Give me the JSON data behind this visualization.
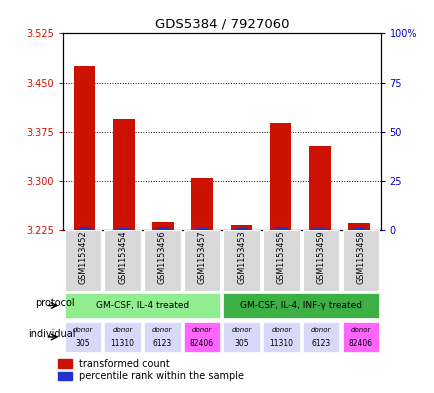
{
  "title": "GDS5384 / 7927060",
  "samples": [
    "GSM1153452",
    "GSM1153454",
    "GSM1153456",
    "GSM1153457",
    "GSM1153453",
    "GSM1153455",
    "GSM1153459",
    "GSM1153458"
  ],
  "red_values": [
    3.476,
    3.395,
    3.237,
    3.305,
    3.233,
    3.388,
    3.353,
    3.236
  ],
  "blue_values": [
    3.229,
    3.228,
    3.229,
    3.228,
    3.228,
    3.229,
    3.228,
    3.228
  ],
  "baseline": 3.225,
  "ylim_left": [
    3.225,
    3.525
  ],
  "yticks_left": [
    3.225,
    3.3,
    3.375,
    3.45,
    3.525
  ],
  "yticks_right": [
    0,
    25,
    50,
    75,
    100
  ],
  "ylim_right": [
    0,
    100
  ],
  "protocol_labels": [
    "GM-CSF, IL-4 treated",
    "GM-CSF, IL-4, INF-γ treated"
  ],
  "protocol_colors": [
    "#90EE90",
    "#3CB043"
  ],
  "individual_colors": [
    "#D8D8F8",
    "#D8D8F8",
    "#D8D8F8",
    "#FF66FF",
    "#D8D8F8",
    "#D8D8F8",
    "#D8D8F8",
    "#FF66FF"
  ],
  "individual_labels": [
    "305",
    "11310",
    "6123",
    "82406",
    "305",
    "11310",
    "6123",
    "82406"
  ],
  "red_color": "#CC1100",
  "blue_color": "#2233CC",
  "background_color": "#FFFFFF",
  "label_color_left": "#CC1100",
  "label_color_right": "#0000CC",
  "grid_linestyle": "dotted",
  "hgrid_at": [
    3.3,
    3.375,
    3.45
  ],
  "bar_width": 0.55
}
